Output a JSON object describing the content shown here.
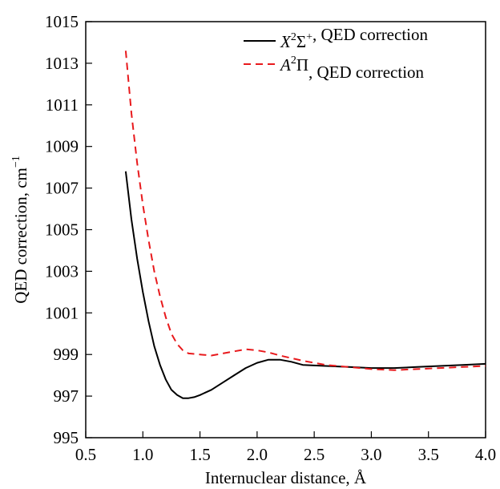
{
  "chart_data": {
    "type": "line",
    "title": "",
    "xlabel": "Internuclear distance, Å",
    "ylabel": {
      "main": "QED correction, cm",
      "superscript": "−1"
    },
    "xlim": [
      0.5,
      4.0
    ],
    "ylim": [
      995,
      1015
    ],
    "x_ticks": [
      "0.5",
      "1.0",
      "1.5",
      "2.0",
      "2.5",
      "3.0",
      "3.5",
      "4.0"
    ],
    "y_ticks": [
      "995",
      "997",
      "999",
      "1001",
      "1003",
      "1005",
      "1007",
      "1009",
      "1011",
      "1013",
      "1015"
    ],
    "grid": false,
    "legend_position": "top-right",
    "series": [
      {
        "name": "X²Σ⁺, QED correction",
        "legend": {
          "sym": "X",
          "sup1": "2",
          "mid": "Σ",
          "sup2": "+",
          "rest": ", QED correction"
        },
        "color": "#000000",
        "style": "solid",
        "points": [
          [
            0.85,
            1007.8
          ],
          [
            0.9,
            1005.5
          ],
          [
            0.95,
            1003.6
          ],
          [
            1.0,
            1002.0
          ],
          [
            1.05,
            1000.6
          ],
          [
            1.1,
            999.4
          ],
          [
            1.15,
            998.5
          ],
          [
            1.2,
            997.8
          ],
          [
            1.25,
            997.3
          ],
          [
            1.3,
            997.05
          ],
          [
            1.35,
            996.9
          ],
          [
            1.4,
            996.9
          ],
          [
            1.45,
            996.95
          ],
          [
            1.5,
            997.05
          ],
          [
            1.6,
            997.3
          ],
          [
            1.7,
            997.65
          ],
          [
            1.8,
            998.0
          ],
          [
            1.9,
            998.35
          ],
          [
            2.0,
            998.6
          ],
          [
            2.1,
            998.75
          ],
          [
            2.2,
            998.75
          ],
          [
            2.3,
            998.65
          ],
          [
            2.4,
            998.5
          ],
          [
            2.6,
            998.45
          ],
          [
            2.8,
            998.4
          ],
          [
            3.0,
            998.35
          ],
          [
            3.2,
            998.35
          ],
          [
            3.4,
            998.4
          ],
          [
            3.6,
            998.45
          ],
          [
            3.8,
            998.5
          ],
          [
            4.0,
            998.55
          ]
        ]
      },
      {
        "name": "A²Π, QED correction",
        "legend": {
          "sym": "A",
          "sup1": "2",
          "mid": "Π",
          "sup2": "",
          "rest": ", QED correction"
        },
        "color": "#e8191c",
        "style": "dashed",
        "points": [
          [
            0.85,
            1013.6
          ],
          [
            0.9,
            1010.6
          ],
          [
            0.95,
            1008.2
          ],
          [
            1.0,
            1006.2
          ],
          [
            1.05,
            1004.5
          ],
          [
            1.1,
            1003.0
          ],
          [
            1.15,
            1001.8
          ],
          [
            1.2,
            1000.8
          ],
          [
            1.25,
            1000.0
          ],
          [
            1.3,
            999.5
          ],
          [
            1.35,
            999.2
          ],
          [
            1.4,
            999.05
          ],
          [
            1.5,
            999.0
          ],
          [
            1.6,
            998.95
          ],
          [
            1.7,
            999.05
          ],
          [
            1.8,
            999.15
          ],
          [
            1.9,
            999.25
          ],
          [
            2.0,
            999.2
          ],
          [
            2.1,
            999.1
          ],
          [
            2.2,
            998.95
          ],
          [
            2.4,
            998.7
          ],
          [
            2.6,
            998.5
          ],
          [
            2.8,
            998.4
          ],
          [
            3.0,
            998.3
          ],
          [
            3.2,
            998.25
          ],
          [
            3.4,
            998.3
          ],
          [
            3.6,
            998.35
          ],
          [
            3.8,
            998.4
          ],
          [
            4.0,
            998.45
          ]
        ]
      }
    ]
  }
}
